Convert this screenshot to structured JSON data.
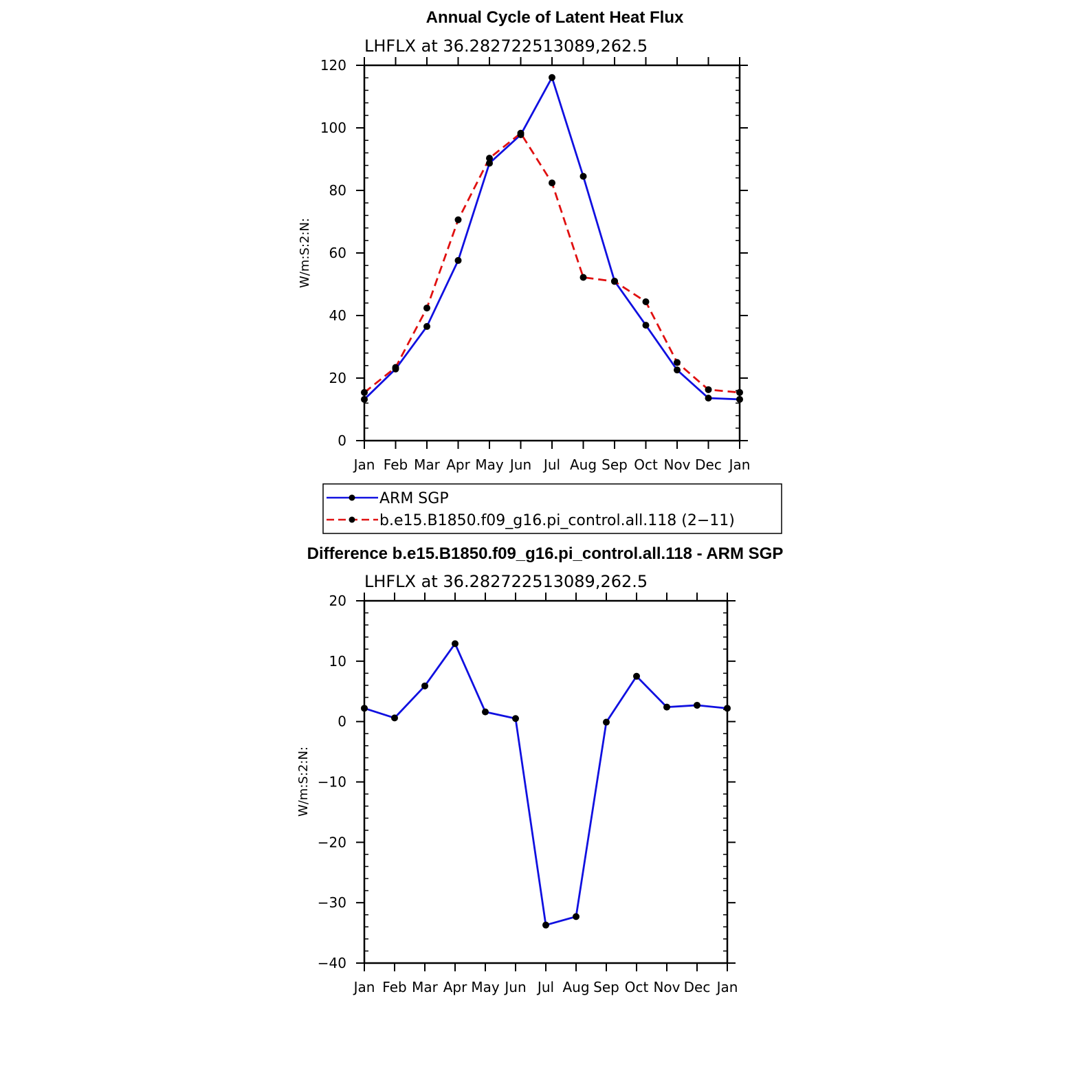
{
  "chart_data": [
    {
      "type": "line",
      "title": "Annual Cycle of Latent Heat Flux",
      "subtitle": "LHFLX  at  36.282722513089,262.5",
      "ylabel": "W/m:S:2:N:",
      "ylim": [
        0,
        120
      ],
      "yticks": [
        "0",
        "20",
        "40",
        "60",
        "80",
        "100",
        "120"
      ],
      "categories": [
        "Jan",
        "Feb",
        "Mar",
        "Apr",
        "May",
        "Jun",
        "Jul",
        "Aug",
        "Sep",
        "Oct",
        "Nov",
        "Dec",
        "Jan"
      ],
      "series": [
        {
          "name": "ARM SGP",
          "color": "#1010e0",
          "dash": "solid",
          "values": [
            13.2,
            22.9,
            36.5,
            57.6,
            88.7,
            97.8,
            116.1,
            84.5,
            51.0,
            36.9,
            22.6,
            13.6,
            13.2
          ]
        },
        {
          "name": "b.e15.B1850.f09_g16.pi_control.all.118 (2−11)",
          "color": "#e01010",
          "dash": "dashed",
          "values": [
            15.4,
            23.4,
            42.4,
            70.6,
            90.3,
            98.3,
            82.4,
            52.2,
            50.9,
            44.4,
            25.0,
            16.3,
            15.4
          ]
        }
      ],
      "legend": "below"
    },
    {
      "type": "line",
      "title": "Difference b.e15.B1850.f09_g16.pi_control.all.118 - ARM SGP",
      "subtitle": "LHFLX  at  36.282722513089,262.5",
      "ylabel": "W/m:S:2:N:",
      "ylim": [
        -40,
        20
      ],
      "yticks": [
        "−40",
        "−30",
        "−20",
        "−10",
        "0",
        "10",
        "20"
      ],
      "categories": [
        "Jan",
        "Feb",
        "Mar",
        "Apr",
        "May",
        "Jun",
        "Jul",
        "Aug",
        "Sep",
        "Oct",
        "Nov",
        "Dec",
        "Jan"
      ],
      "series": [
        {
          "color": "#1010e0",
          "dash": "solid",
          "values": [
            2.2,
            0.6,
            5.9,
            12.9,
            1.6,
            0.5,
            -33.7,
            -32.3,
            -0.1,
            7.5,
            2.4,
            2.7,
            2.2
          ]
        }
      ]
    }
  ]
}
